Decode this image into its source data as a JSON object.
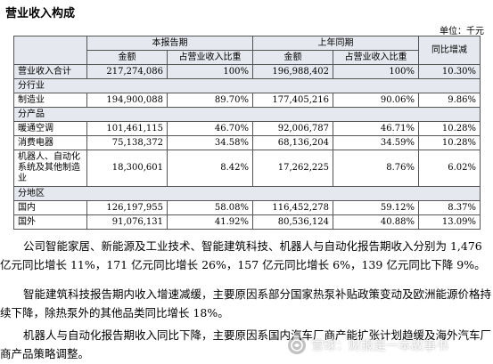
{
  "title": "营业收入构成",
  "unit": "单位：千元",
  "table": {
    "group_current": "本报告期",
    "group_prior": "上年同期",
    "yoy_header": "同比增减",
    "sub_amount": "金额",
    "sub_pct": "占营业收入比重",
    "total_row": {
      "label": "营业收入合计",
      "cur_amt": "217,274,086",
      "cur_pct": "100%",
      "prev_amt": "196,988,402",
      "prev_pct": "100%",
      "yoy": "10.30%"
    },
    "sec_industry": "分行业",
    "industry_rows": [
      {
        "label": "制造业",
        "cur_amt": "194,900,088",
        "cur_pct": "89.70%",
        "prev_amt": "177,405,216",
        "prev_pct": "90.06%",
        "yoy": "9.86%"
      }
    ],
    "sec_product": "分产品",
    "product_rows": [
      {
        "label": "暖通空调",
        "cur_amt": "101,461,115",
        "cur_pct": "46.70%",
        "prev_amt": "92,006,787",
        "prev_pct": "46.71%",
        "yoy": "10.28%"
      },
      {
        "label": "消费电器",
        "cur_amt": "75,138,372",
        "cur_pct": "34.58%",
        "prev_amt": "68,136,204",
        "prev_pct": "34.59%",
        "yoy": "10.28%"
      },
      {
        "label": "机器人、自动化系统及其他制造业",
        "cur_amt": "18,300,601",
        "cur_pct": "8.42%",
        "prev_amt": "17,262,225",
        "prev_pct": "8.76%",
        "yoy": "6.02%"
      }
    ],
    "sec_region": "分地区",
    "region_rows": [
      {
        "label": "国内",
        "cur_amt": "126,197,955",
        "cur_pct": "58.08%",
        "prev_amt": "116,452,278",
        "prev_pct": "59.12%",
        "yoy": "8.37%"
      },
      {
        "label": "国外",
        "cur_amt": "91,076,131",
        "cur_pct": "41.92%",
        "prev_amt": "80,536,124",
        "prev_pct": "40.88%",
        "yoy": "13.09%"
      }
    ]
  },
  "paragraphs": [
    "公司智能家居、新能源及工业技术、智能建筑科技、机器人与自动化报告期收入分别为 1,476 亿元同比增长 11%，171 亿元同比增长 26%，157 亿元同比增长 6%，139 亿元同比下降 9%。",
    "智能建筑科技报告期内收入增速减缓，主要原因系部分国家热泵补贴政策变动及欧洲能源价格持续下降，除热泵外的其他品类同比增长 18%。",
    "机器人与自动化报告期收入同比下降，主要原因系国内汽车厂商产能扩张计划趋缓及海外汽车厂商产品策略调整。"
  ],
  "watermark": {
    "brand": "雪球",
    "text": "雪球：财报是一本故事书"
  }
}
